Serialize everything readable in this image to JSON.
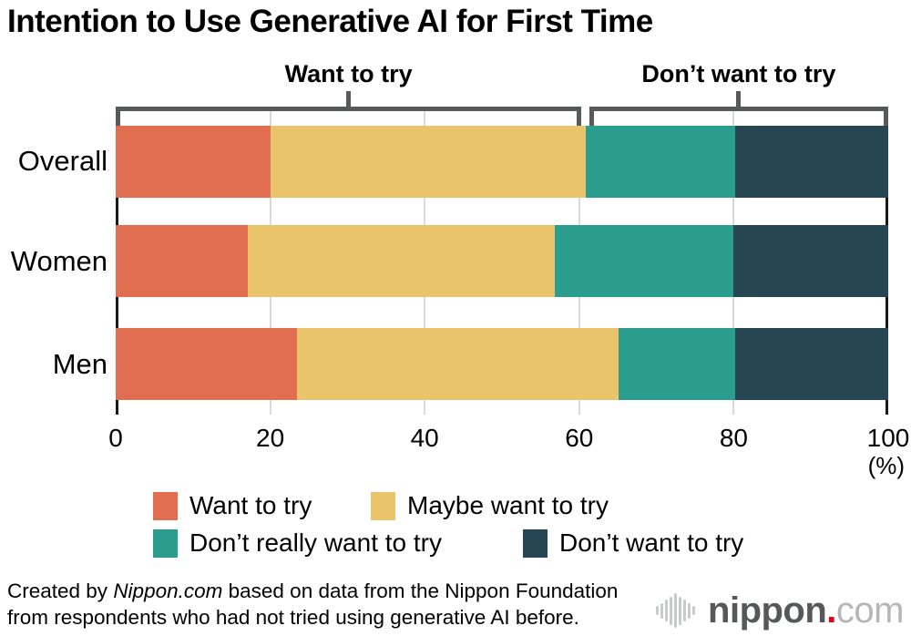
{
  "chart_data": {
    "type": "bar",
    "orientation": "horizontal",
    "stacked": true,
    "title": "Intention to Use Generative AI for First Time",
    "categories": [
      "Overall",
      "Women",
      "Men"
    ],
    "series": [
      {
        "name": "Want to try",
        "color": "#e26e51",
        "values": [
          20.0,
          17.1,
          23.5
        ]
      },
      {
        "name": "Maybe want to try",
        "color": "#e9c46a",
        "values": [
          40.8,
          39.7,
          41.6
        ]
      },
      {
        "name": "Don’t really want to try",
        "color": "#2a9d8f",
        "values": [
          19.4,
          23.2,
          15.1
        ]
      },
      {
        "name": "Don’t want to try",
        "color": "#264653",
        "values": [
          19.8,
          20.0,
          19.8
        ]
      }
    ],
    "xlim": [
      0,
      100
    ],
    "x_ticks": [
      0,
      20,
      40,
      60,
      80,
      100
    ],
    "x_unit_label": "(%)",
    "grid": true,
    "legend_position": "bottom",
    "annotations": [
      {
        "label": "Want to try",
        "span": [
          0,
          60.3
        ]
      },
      {
        "label": "Don’t want to try",
        "span": [
          61.3,
          100
        ]
      }
    ],
    "legend_rows": [
      [
        "Want to try",
        "Maybe want to try"
      ],
      [
        "Don’t really want to try",
        "Don’t want to try"
      ]
    ]
  },
  "footer": {
    "credit_pre": "Created by ",
    "credit_italic": "Nippon.com",
    "credit_post": " based on data from the Nippon Foundation",
    "credit_line2": "from respondents who had not tried using generative AI before.",
    "logo": {
      "main": "nippon",
      "dot": ".",
      "suffix": "com"
    }
  },
  "colors": {
    "bracket": "#58595b",
    "gridline": "#d9d9d9",
    "axis": "#1a1a1a",
    "logo_wave": "#c9cacb",
    "logo_main": "#57585a",
    "logo_dot": "#e60012",
    "logo_suffix": "#b4b6b8"
  }
}
